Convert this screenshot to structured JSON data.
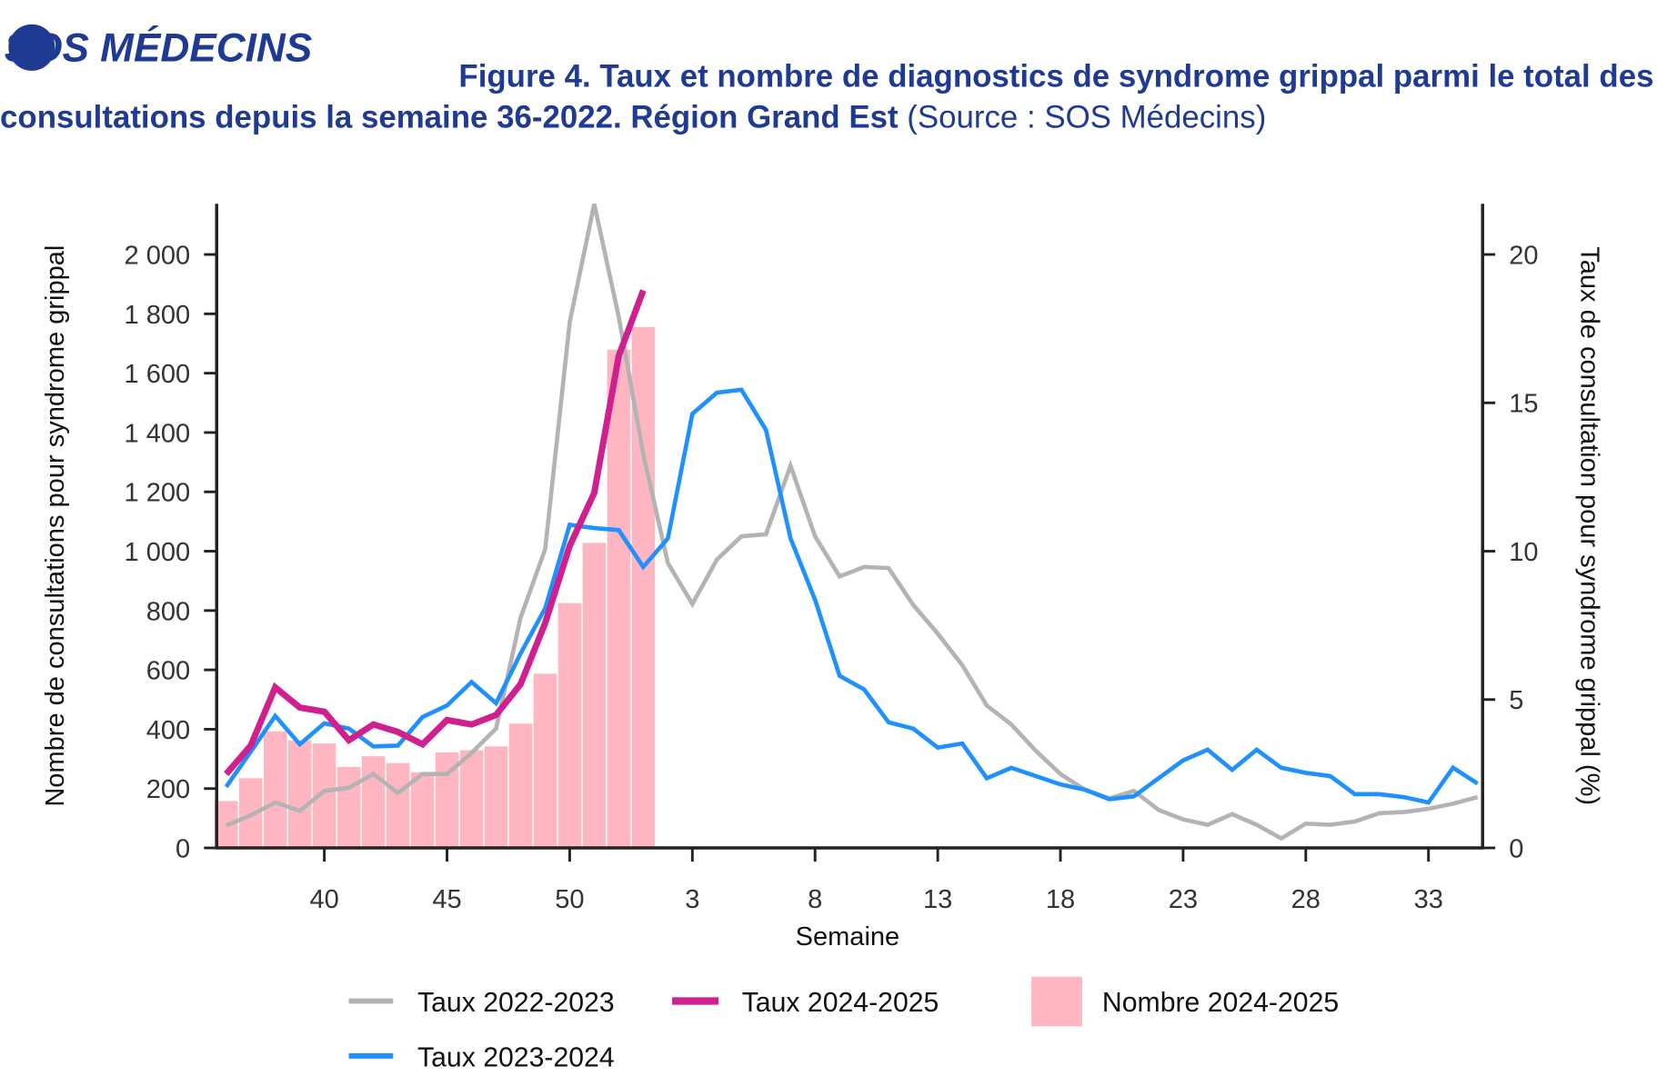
{
  "header": {
    "logo_text": "SOS MÉDECINS",
    "title_line1": "Figure 4. Taux et nombre de diagnostics de syndrome grippal parmi le total des",
    "title_line2": "consultations depuis la semaine 36-2022. Région Grand Est",
    "source": " (Source : SOS Médecins)"
  },
  "chart_data": {
    "type": "bar+line",
    "xlabel": "Semaine",
    "ylabel_left": "Nombre de consultations pour syndrome grippal",
    "ylabel_right": "Taux de consultation pour syndrome grippal (%)",
    "ylim_left": [
      0,
      2150
    ],
    "ylim_right": [
      0,
      21.5
    ],
    "left_ticks": [
      0,
      200,
      400,
      600,
      800,
      1000,
      1200,
      1400,
      1600,
      1800,
      2000
    ],
    "left_tick_labels": [
      "0",
      "200",
      "400",
      "600",
      "800",
      "1 000",
      "1 200",
      "1 400",
      "1 600",
      "1 800",
      "2 000"
    ],
    "right_ticks": [
      0,
      5,
      10,
      15,
      20
    ],
    "right_tick_labels": [
      "0",
      "5",
      "10",
      "15",
      "20"
    ],
    "weeks": [
      36,
      37,
      38,
      39,
      40,
      41,
      42,
      43,
      44,
      45,
      46,
      47,
      48,
      49,
      50,
      51,
      52,
      1,
      2,
      3,
      4,
      5,
      6,
      7,
      8,
      9,
      10,
      11,
      12,
      13,
      14,
      15,
      16,
      17,
      18,
      19,
      20,
      21,
      22,
      23,
      24,
      25,
      26,
      27,
      28,
      29,
      30,
      31,
      32,
      33,
      34,
      35
    ],
    "x_tick_labels": [
      "40",
      "45",
      "50",
      "3",
      "8",
      "13",
      "18",
      "23",
      "28",
      "33"
    ],
    "grid": false,
    "legend_placement": "bottom",
    "series": [
      {
        "name": "Taux 2022-2023",
        "type": "line",
        "axis": "right",
        "color": "#b3b3b3",
        "values": [
          0.75,
          1.1,
          1.53,
          1.25,
          1.92,
          2.03,
          2.49,
          1.85,
          2.49,
          2.49,
          3.2,
          4.02,
          7.76,
          10.07,
          17.72,
          21.7,
          17.9,
          13.27,
          9.6,
          8.22,
          9.72,
          10.5,
          10.57,
          12.88,
          10.5,
          9.15,
          9.47,
          9.43,
          8.19,
          7.22,
          6.16,
          4.8,
          4.16,
          3.27,
          2.49,
          1.96,
          1.67,
          1.92,
          1.28,
          0.96,
          0.78,
          1.14,
          0.78,
          0.32,
          0.82,
          0.78,
          0.89,
          1.17,
          1.21,
          1.32,
          1.49,
          1.71
        ]
      },
      {
        "name": "Taux 2023-2024",
        "type": "line",
        "axis": "right",
        "color": "#1e90ff",
        "values": [
          2.06,
          3.24,
          4.45,
          3.49,
          4.2,
          4.02,
          3.42,
          3.45,
          4.41,
          4.8,
          5.59,
          4.88,
          6.55,
          8.08,
          10.89,
          10.78,
          10.71,
          9.47,
          10.43,
          14.63,
          15.34,
          15.44,
          14.09,
          10.43,
          8.36,
          5.8,
          5.34,
          4.23,
          4.02,
          3.38,
          3.52,
          2.35,
          2.7,
          2.42,
          2.14,
          1.96,
          1.64,
          1.74,
          2.35,
          2.95,
          3.31,
          2.63,
          3.31,
          2.7,
          2.53,
          2.42,
          1.81,
          1.81,
          1.71,
          1.53,
          2.7,
          2.17
        ]
      },
      {
        "name": "Taux 2024-2025",
        "type": "line",
        "axis": "right",
        "color": "#d01f8f",
        "values": [
          2.49,
          3.45,
          5.41,
          4.73,
          4.59,
          3.63,
          4.16,
          3.91,
          3.49,
          4.31,
          4.16,
          4.48,
          5.52,
          7.58,
          10.18,
          11.96,
          16.58,
          18.79
        ]
      },
      {
        "name": "Nombre 2024-2025",
        "type": "bar",
        "axis": "left",
        "color": "#ffb6c1",
        "values": [
          158,
          235,
          393,
          362,
          352,
          273,
          309,
          286,
          255,
          322,
          329,
          342,
          419,
          587,
          825,
          1028,
          1679,
          1755
        ]
      }
    ]
  }
}
